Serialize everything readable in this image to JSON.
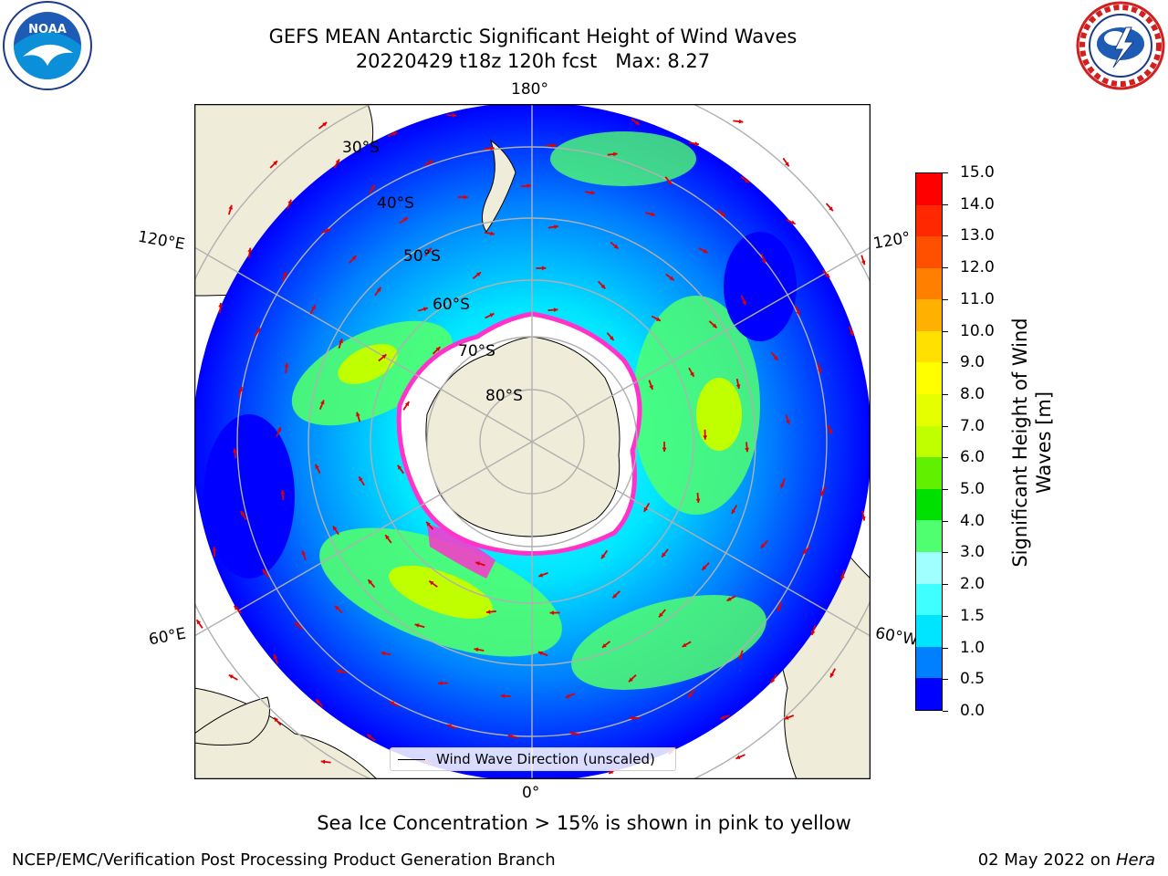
{
  "header": {
    "title_line1": "GEFS MEAN Antarctic Significant Height of Wind Waves",
    "title_line2": "20220429 t18z 120h fcst   Max: 8.27"
  },
  "logos": {
    "noaa_text": "NOAA",
    "noaa_ring_text": "NATIONAL OCEANIC AND ATMOSPHERIC ADMINISTRATION • U.S. DEPARTMENT OF COMMERCE",
    "nws_ring_text": "NATIONAL WEATHER SERVICE"
  },
  "map": {
    "lon_labels": {
      "top": "180°",
      "bottom": "0°",
      "left_upper": "120°E",
      "left_lower": "60°E",
      "right_upper": "120°",
      "right_lower": "60°W"
    },
    "lat_labels": [
      "30°S",
      "40°S",
      "50°S",
      "60°S",
      "70°S",
      "80°S"
    ],
    "legend_label": "Wind Wave Direction (unscaled)",
    "colors": {
      "land": "#efedd9",
      "ice_edge": "#ff33cc",
      "grid": "#b0b0b0"
    }
  },
  "colorbar": {
    "title_line1": "Significant Height of Wind",
    "title_line2": "Waves [m]",
    "ticks": [
      "0.0",
      "0.5",
      "1.0",
      "1.5",
      "2.0",
      "3.0",
      "4.0",
      "5.0",
      "6.0",
      "7.0",
      "8.0",
      "9.0",
      "10.0",
      "11.0",
      "12.0",
      "13.0",
      "14.0",
      "15.0"
    ],
    "colors": [
      "#0000ff",
      "#0080ff",
      "#00e5ff",
      "#40ffff",
      "#a0ffff",
      "#50ff70",
      "#00e000",
      "#60f000",
      "#c0ff00",
      "#e5ff00",
      "#ffff00",
      "#ffe000",
      "#ffb000",
      "#ff8000",
      "#ff5000",
      "#ff2800",
      "#ff0000"
    ]
  },
  "note": "Sea Ice Concentration > 15% is shown in pink to yellow",
  "footer": {
    "left": "NCEP/EMC/Verification Post Processing Product Generation Branch",
    "date": "02 May 2022 on ",
    "machine": "Hera"
  }
}
